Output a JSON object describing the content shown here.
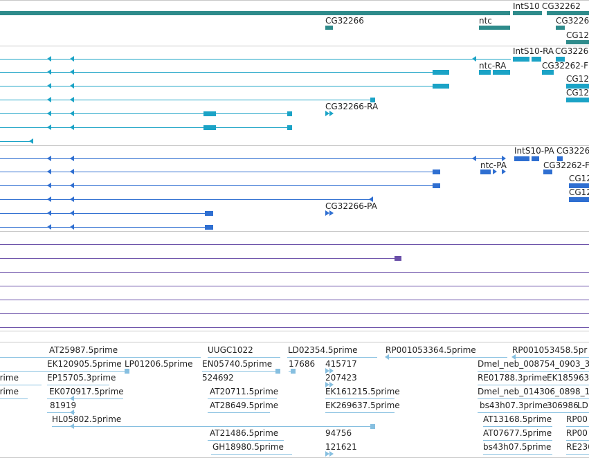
{
  "colors": {
    "gene": "#2e8b8b",
    "transcript": "#1ba3c6",
    "protein": "#2f6fd1",
    "other": "#6a4fa8",
    "est": "#86bfe0",
    "separator": "#c8c8c8"
  },
  "gene_track": {
    "labels": [
      "IntS10",
      "CG32262",
      "CG32266",
      "ntc",
      "CG3226",
      "CG12"
    ]
  },
  "transcript_track": {
    "labels": [
      "IntS10-RA",
      "CG3226",
      "ntc-RA",
      "CG32262-F",
      "CG12",
      "CG12",
      "CG32266-RA"
    ]
  },
  "protein_track": {
    "labels": [
      "IntS10-PA",
      "CG3226",
      "ntc-PA",
      "CG32262-F",
      "CG12",
      "CG12",
      "CG32266-PA"
    ]
  },
  "est_track": {
    "labels": [
      "AT25987.5prime",
      "UUGC1022",
      "LD02354.5prime",
      "RP001053364.5prime",
      "RP001053458.5pr",
      "EK120905.5prime",
      "LP01206.5prime",
      "EN05740.5prime",
      "17686",
      "415717",
      "Dmel_neb_008754_0903_3",
      "prime",
      "EP15705.3prime",
      "524692",
      "207423",
      "RE01788.3prime",
      "EK185963",
      "prime",
      "EK070917.5prime",
      "AT20711.5prime",
      "EK161215.5prime",
      "Dmel_neb_014306_0898_1",
      "81919",
      "AT28649.5prime",
      "EK269637.5prime",
      "bs43h07.3prime",
      "306986",
      "LD",
      "HL05802.5prime",
      "AT13168.5prime",
      "RP00",
      "AT21486.5prime",
      "94756",
      "AT07677.5prime",
      "RP00",
      "GH18980.5prime",
      "121621",
      "bs43h07.5prime",
      "RE230"
    ]
  }
}
